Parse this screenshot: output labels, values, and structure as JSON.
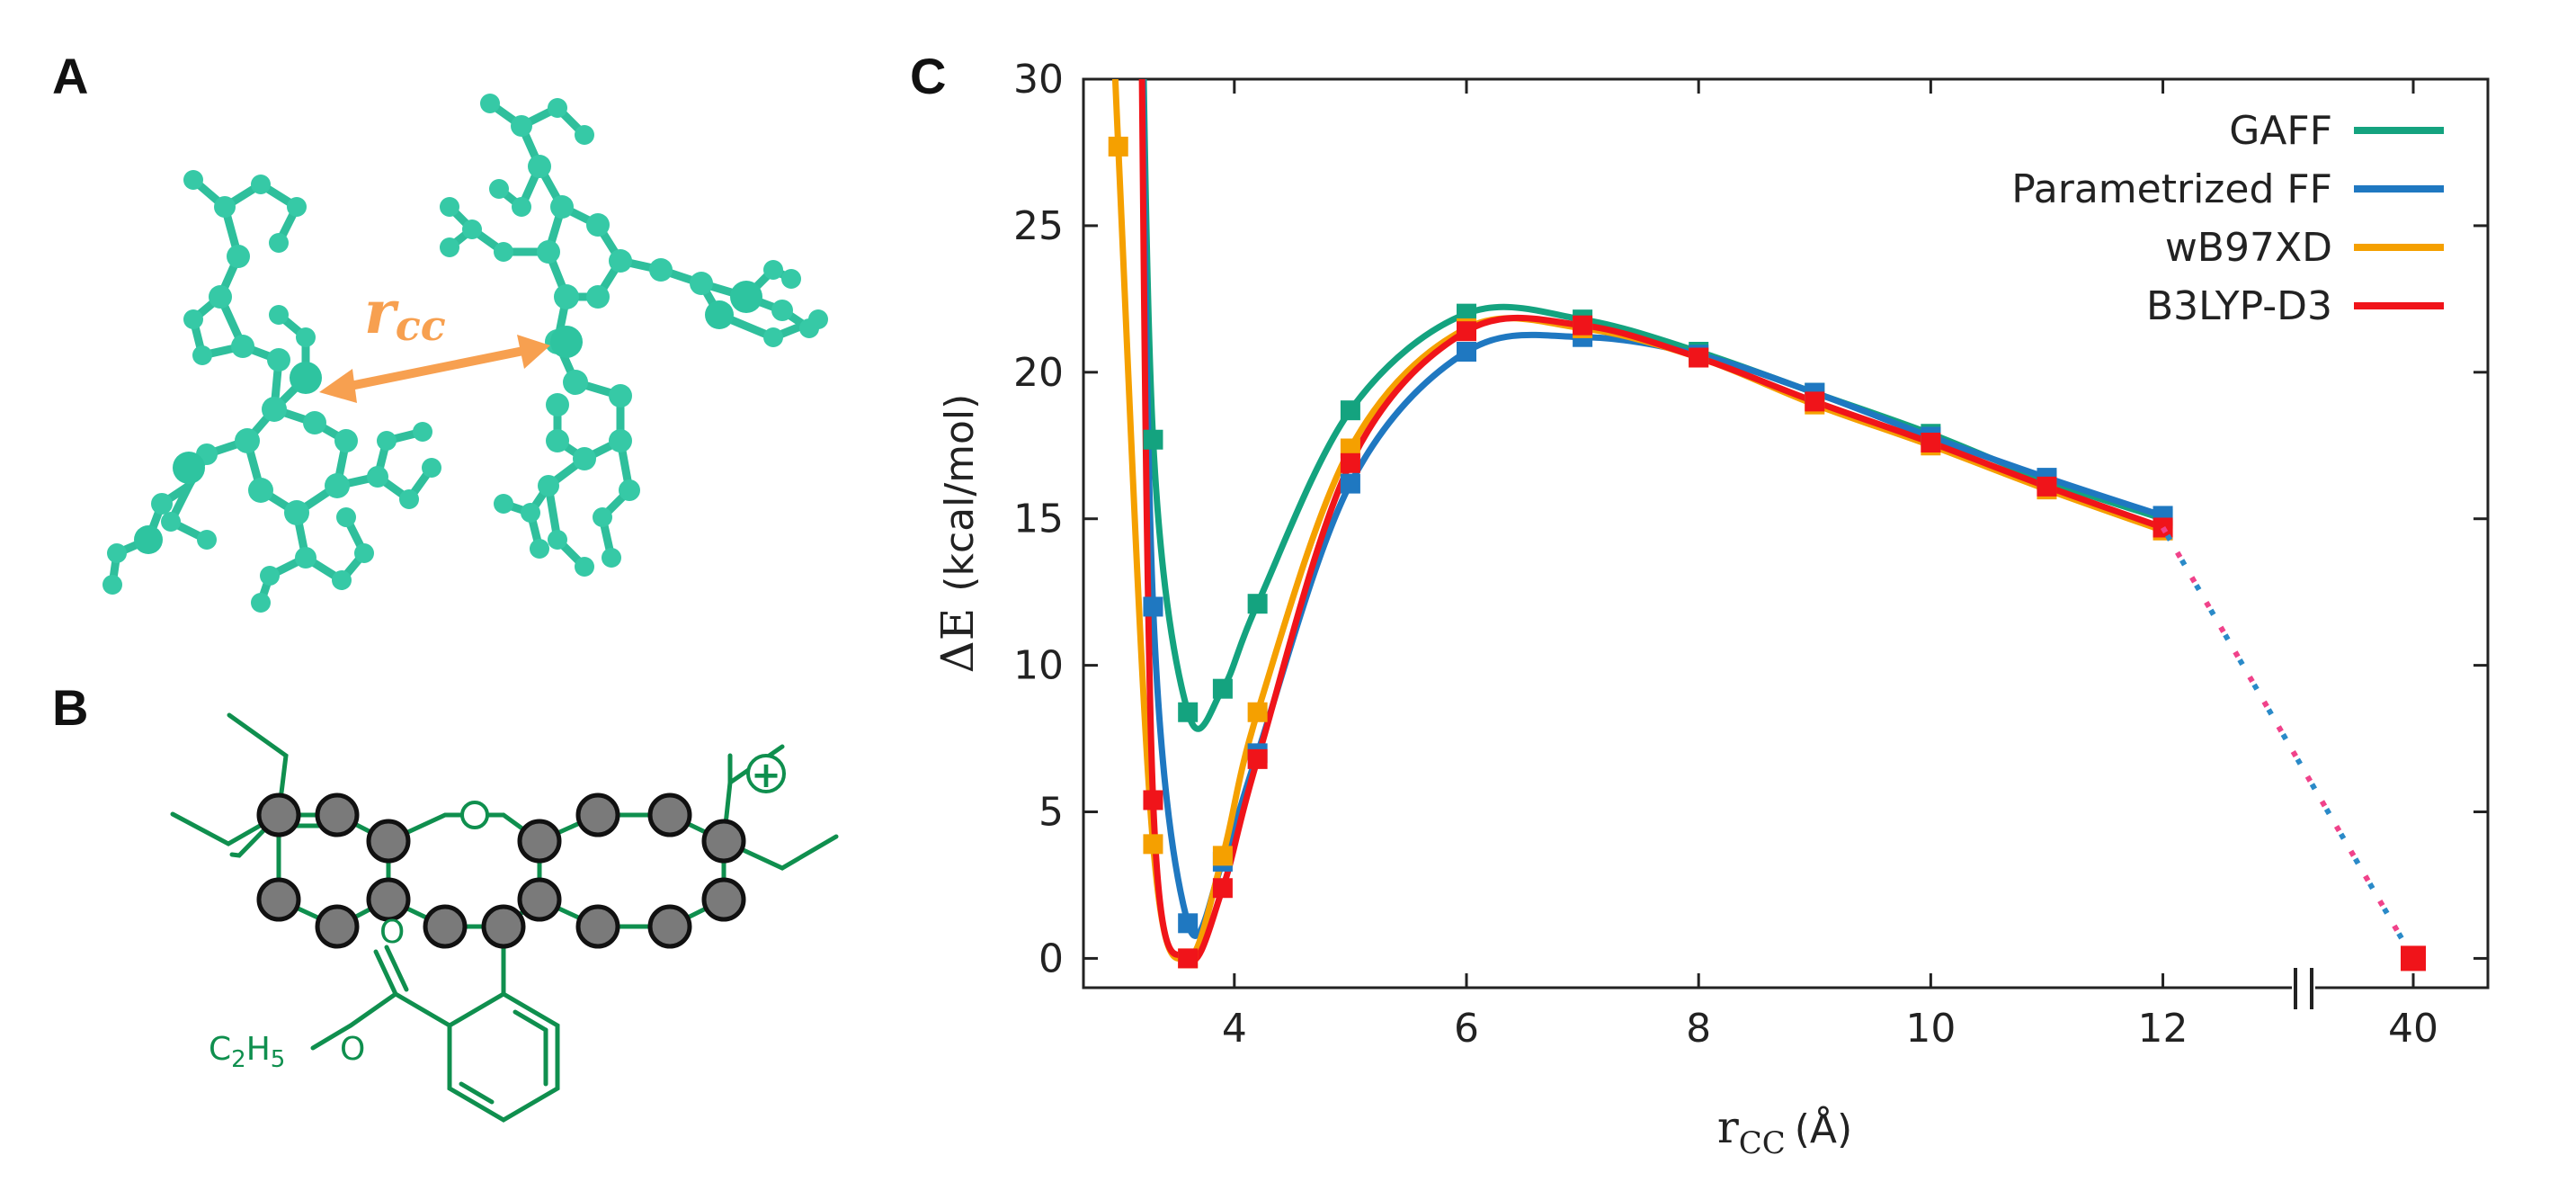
{
  "panels": {
    "a": "A",
    "b": "B",
    "c": "C"
  },
  "panel_a": {
    "distance_label": "r",
    "distance_subscript": "cc"
  },
  "panel_b": {
    "ethyl_label_C": "C",
    "ethyl_sub1": "2",
    "ethyl_label_H": "H",
    "ethyl_sub2": "5",
    "ether_O": "O",
    "carbonyl_O": "O",
    "charge": "+"
  },
  "colors": {
    "GAFF": "#14a37f",
    "Parametrized FF": "#1f78c1",
    "wB97XD": "#f5a000",
    "B3LYP-D3": "#f0141a",
    "molecule": "#0f8f4e",
    "atom_grey": "#7a7a7a",
    "arrow": "#f7a050"
  },
  "chart_data": {
    "type": "line",
    "title": "",
    "xlabel_main": "r",
    "xlabel_sub": "CC",
    "xlabel_unit": "(Å)",
    "ylabel_main": "ΔE",
    "ylabel_unit": "(kcal/mol)",
    "xlim": [
      2.7,
      14.8
    ],
    "ylim": [
      -1,
      30
    ],
    "x_ticks": [
      4,
      6,
      8,
      10,
      12
    ],
    "x_break_tick": 40,
    "y_ticks": [
      0,
      5,
      10,
      15,
      20,
      25,
      30
    ],
    "grid": false,
    "legend_position": "top-right",
    "series": [
      {
        "name": "GAFF",
        "x": [
          3.3,
          3.6,
          3.9,
          4.2,
          5,
          6,
          7,
          8,
          9,
          10,
          11,
          12
        ],
        "values": [
          17.7,
          8.4,
          9.2,
          12.1,
          18.7,
          22.0,
          21.8,
          20.7,
          19.3,
          17.9,
          16.3,
          15.0
        ]
      },
      {
        "name": "Parametrized FF",
        "x": [
          3.3,
          3.6,
          3.9,
          4.2,
          5,
          6,
          7,
          8,
          9,
          10,
          11,
          12
        ],
        "values": [
          12.0,
          1.2,
          3.3,
          7.0,
          16.2,
          20.7,
          21.2,
          20.6,
          19.3,
          17.8,
          16.4,
          15.1
        ]
      },
      {
        "name": "wB97XD",
        "x": [
          3.0,
          3.3,
          3.6,
          3.9,
          4.2,
          5,
          6,
          7,
          8,
          9,
          10,
          11,
          12
        ],
        "values": [
          27.7,
          3.9,
          0.0,
          3.5,
          8.4,
          17.4,
          21.5,
          21.5,
          20.5,
          18.9,
          17.5,
          16.0,
          14.6
        ]
      },
      {
        "name": "B3LYP-D3",
        "x": [
          3.3,
          3.6,
          3.9,
          4.2,
          5,
          6,
          7,
          8,
          9,
          10,
          11,
          12
        ],
        "values": [
          5.4,
          0.0,
          2.4,
          6.8,
          16.9,
          21.4,
          21.6,
          20.5,
          19.0,
          17.6,
          16.1,
          14.7
        ]
      }
    ],
    "extrapolated_point": {
      "name": "B3LYP-D3",
      "x": 40,
      "value": 0.0
    }
  }
}
